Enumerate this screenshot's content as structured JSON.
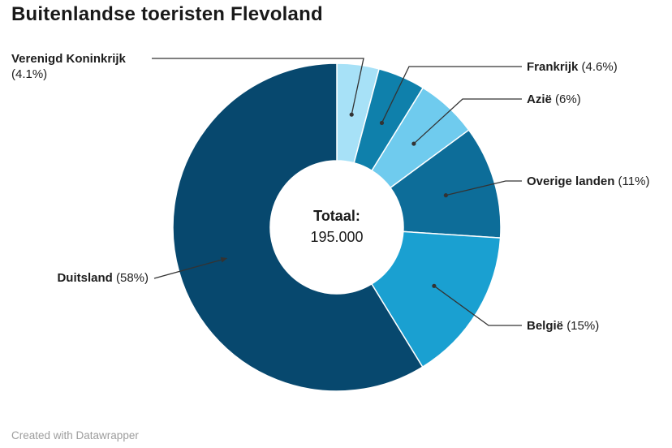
{
  "header": {
    "title": "Buitenlandse toeristen Flevoland"
  },
  "footer": {
    "credit": "Created with Datawrapper"
  },
  "center": {
    "label": "Totaal:",
    "value": "195.000"
  },
  "chart_data": {
    "type": "pie",
    "subtype": "donut",
    "title": "Buitenlandse toeristen Flevoland",
    "center_text": {
      "label": "Totaal:",
      "value": "195.000"
    },
    "start_angle_deg": 0,
    "clockwise": true,
    "legend_position": "outside-callout-labels",
    "line_color": "#333333",
    "separator_color": "#ffffff",
    "slices": [
      {
        "id": "verenigd-koninkrijk",
        "label": "Verenigd Koninkrijk",
        "pct_display": "(4.1%)",
        "value": 4.1,
        "color": "#a7e1f7"
      },
      {
        "id": "frankrijk",
        "label": "Frankrijk",
        "pct_display": "(4.6%)",
        "value": 4.6,
        "color": "#0f80ab"
      },
      {
        "id": "azie",
        "label": "Azië",
        "pct_display": "(6%)",
        "value": 6,
        "color": "#6fcbee"
      },
      {
        "id": "overige-landen",
        "label": "Overige landen",
        "pct_display": "(11%)",
        "value": 11,
        "color": "#0d6d99"
      },
      {
        "id": "belgie",
        "label": "België",
        "pct_display": "(15%)",
        "value": 15,
        "color": "#1aa0d1"
      },
      {
        "id": "duitsland",
        "label": "Duitsland",
        "pct_display": "(58%)",
        "value": 58,
        "color": "#07486e"
      }
    ]
  }
}
